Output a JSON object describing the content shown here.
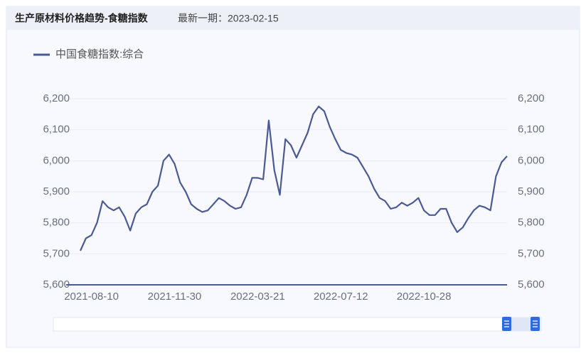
{
  "header": {
    "title": "生产原材料价格趋势-食糖指数",
    "latest": "最新一期：2023-02-15"
  },
  "chart_data": {
    "type": "line",
    "categories": [
      null,
      null,
      "2021-08-10",
      null,
      null,
      null,
      null,
      null,
      null,
      null,
      null,
      null,
      null,
      null,
      null,
      null,
      null,
      "2021-11-30",
      null,
      null,
      null,
      null,
      null,
      null,
      null,
      null,
      null,
      null,
      null,
      null,
      null,
      null,
      "2022-03-21",
      null,
      null,
      null,
      null,
      null,
      null,
      null,
      null,
      null,
      null,
      null,
      null,
      null,
      null,
      "2022-07-12",
      null,
      null,
      null,
      null,
      null,
      null,
      null,
      null,
      null,
      null,
      null,
      null,
      null,
      null,
      "2022-10-28",
      null,
      null,
      null,
      null,
      null,
      null,
      null,
      null,
      null,
      null,
      null,
      null,
      null,
      null,
      null
    ],
    "series": [
      {
        "name": "中国食糖指数:综合",
        "color": "#4c5a94",
        "values": [
          5710,
          5750,
          5760,
          5800,
          5870,
          5850,
          5840,
          5850,
          5820,
          5775,
          5830,
          5850,
          5860,
          5900,
          5920,
          6000,
          6020,
          5990,
          5930,
          5900,
          5860,
          5845,
          5835,
          5840,
          5860,
          5880,
          5870,
          5855,
          5845,
          5850,
          5890,
          5945,
          5945,
          5940,
          6130,
          5970,
          5890,
          6070,
          6050,
          6010,
          6050,
          6090,
          6150,
          6175,
          6160,
          6110,
          6070,
          6035,
          6025,
          6020,
          6010,
          5980,
          5950,
          5910,
          5880,
          5870,
          5845,
          5850,
          5865,
          5855,
          5865,
          5880,
          5840,
          5825,
          5825,
          5845,
          5845,
          5800,
          5770,
          5785,
          5815,
          5840,
          5855,
          5850,
          5840,
          5950,
          5995,
          6015
        ]
      }
    ],
    "ylim": [
      5600,
      6200
    ],
    "yticks": [
      {
        "value": 5600,
        "label": "5,600"
      },
      {
        "value": 5700,
        "label": "5,700"
      },
      {
        "value": 5800,
        "label": "5,800"
      },
      {
        "value": 5900,
        "label": "5,900"
      },
      {
        "value": 6000,
        "label": "6,000"
      },
      {
        "value": 6100,
        "label": "6,100"
      },
      {
        "value": 6200,
        "label": "6,200"
      }
    ],
    "y2lim": [
      5600,
      6200
    ],
    "y2ticks": [
      {
        "value": 5600,
        "label": "5,600"
      },
      {
        "value": 5700,
        "label": "5,700"
      },
      {
        "value": 5800,
        "label": "5,800"
      },
      {
        "value": 5900,
        "label": "5,900"
      },
      {
        "value": 6000,
        "label": "6,000"
      },
      {
        "value": 6100,
        "label": "6,100"
      },
      {
        "value": 6200,
        "label": "6,200"
      }
    ],
    "grid": true,
    "legend": "top-left"
  }
}
